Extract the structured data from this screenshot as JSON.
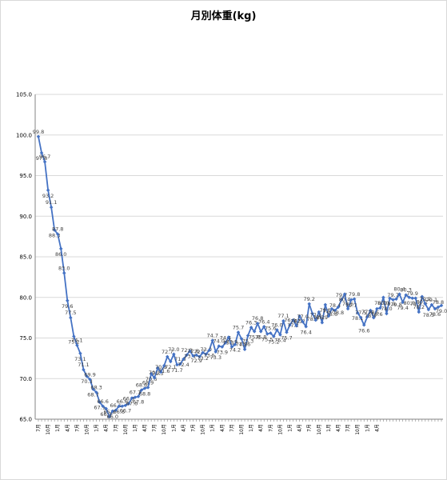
{
  "chart_data": {
    "type": "line",
    "title": "月別体重(kg)",
    "xlabel": "",
    "ylabel": "",
    "ylim": [
      65.0,
      105.0
    ],
    "yticks": [
      "65.0",
      "70.0",
      "75.0",
      "80.0",
      "85.0",
      "90.0",
      "95.0",
      "100.0",
      "105.0"
    ],
    "grid": true,
    "legend": "none",
    "x_tick_labels": [
      "7月",
      "10月",
      "1月",
      "4月",
      "7月",
      "10月",
      "1月",
      "4月",
      "7月",
      "10月",
      "1月",
      "4月",
      "7月",
      "10月",
      "1月",
      "4月",
      "7月",
      "10月",
      "1月",
      "4月",
      "7月",
      "10月",
      "1月",
      "4月",
      "7月",
      "10月",
      "1月",
      "4月",
      "7月",
      "10月",
      "1月",
      "4月",
      "7月",
      "10月",
      "1月",
      "4月"
    ],
    "series": [
      {
        "color": "#4472c4",
        "values": [
          99.8,
          97.8,
          96.7,
          93.2,
          91.1,
          88.3,
          87.8,
          86.0,
          83.0,
          79.6,
          77.5,
          75.2,
          74.1,
          73.1,
          71.1,
          70.3,
          69.9,
          68.7,
          68.3,
          67.1,
          66.6,
          66.3,
          65.3,
          66.0,
          66.1,
          66.6,
          66.6,
          66.7,
          66.9,
          67.6,
          67.7,
          67.8,
          68.6,
          68.8,
          68.9,
          70.6,
          70.1,
          71.3,
          70.8,
          71.6,
          72.7,
          72.1,
          73.0,
          71.7,
          71.8,
          72.4,
          72.9,
          73.4,
          72.8,
          72.9,
          72.7,
          73.2,
          73.0,
          73.5,
          74.7,
          73.3,
          74.0,
          73.9,
          74.4,
          75.1,
          73.9,
          74.2,
          75.7,
          74.9,
          73.6,
          75.3,
          76.3,
          75.8,
          76.8,
          75.8,
          76.4,
          75.5,
          75.6,
          75.2,
          76.0,
          75.4,
          77.1,
          75.7,
          76.6,
          77.2,
          76.5,
          77.7,
          77.0,
          76.4,
          79.2,
          78.0,
          77.2,
          78.2,
          76.9,
          79.1,
          77.7,
          78.6,
          78.4,
          78.8,
          79.7,
          80.4,
          78.6,
          79.7,
          79.8,
          78.1,
          77.5,
          76.6,
          77.6,
          78.4,
          77.5,
          78.6,
          78.7,
          80.0,
          78.0,
          79.9,
          79.7,
          79.8,
          80.4,
          79.4,
          80.3,
          80.0,
          79.9,
          79.9,
          78.2,
          80.1,
          79.2,
          78.5,
          79.1,
          78.6,
          78.8,
          79.0
        ]
      }
    ]
  }
}
